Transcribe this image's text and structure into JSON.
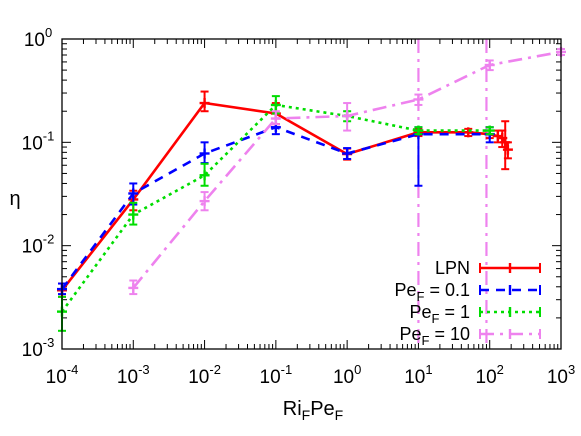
{
  "chart_data": {
    "type": "line",
    "xscale": "log",
    "yscale": "log",
    "xlim": [
      0.0001,
      1000
    ],
    "ylim": [
      0.001,
      1
    ],
    "xlabel": {
      "main": "Ri",
      "sub1": "F",
      "mid": "Pe",
      "sub2": "F"
    },
    "ylabel": "η",
    "x_ticks": [
      {
        "base": "10",
        "exp": "-4",
        "value": 0.0001
      },
      {
        "base": "10",
        "exp": "-3",
        "value": 0.001
      },
      {
        "base": "10",
        "exp": "-2",
        "value": 0.01
      },
      {
        "base": "10",
        "exp": "-1",
        "value": 0.1
      },
      {
        "base": "10",
        "exp": "0",
        "value": 1
      },
      {
        "base": "10",
        "exp": "1",
        "value": 10
      },
      {
        "base": "10",
        "exp": "2",
        "value": 100
      },
      {
        "base": "10",
        "exp": "3",
        "value": 1000
      }
    ],
    "y_ticks": [
      {
        "base": "10",
        "exp": "-3",
        "value": 0.001
      },
      {
        "base": "10",
        "exp": "-2",
        "value": 0.01
      },
      {
        "base": "10",
        "exp": "-1",
        "value": 0.1
      },
      {
        "base": "10",
        "exp": "0",
        "value": 1
      }
    ],
    "vlines": [
      {
        "x": 10,
        "color": "#ee82ee"
      },
      {
        "x": 90,
        "color": "#ee82ee"
      }
    ],
    "legend_position": "bottom-right",
    "series": [
      {
        "name": "LPN",
        "legend": {
          "main": "LPN",
          "sub": "",
          "rest": ""
        },
        "color": "#ff0000",
        "dash": "solid",
        "points": [
          {
            "x": 0.0001,
            "y": 0.0037,
            "lo": 0.0032,
            "hi": 0.0043
          },
          {
            "x": 0.001,
            "y": 0.028,
            "lo": 0.022,
            "hi": 0.034
          },
          {
            "x": 0.01,
            "y": 0.24,
            "lo": 0.2,
            "hi": 0.31
          },
          {
            "x": 0.1,
            "y": 0.19,
            "lo": 0.15,
            "hi": 0.24
          },
          {
            "x": 1,
            "y": 0.077,
            "lo": 0.068,
            "hi": 0.087
          },
          {
            "x": 10,
            "y": 0.125,
            "lo": 0.115,
            "hi": 0.135
          },
          {
            "x": 50,
            "y": 0.125,
            "lo": 0.115,
            "hi": 0.135
          },
          {
            "x": 100,
            "y": 0.12,
            "lo": 0.11,
            "hi": 0.13
          },
          {
            "x": 130,
            "y": 0.115,
            "lo": 0.1,
            "hi": 0.13
          },
          {
            "x": 150,
            "y": 0.11,
            "lo": 0.09,
            "hi": 0.13
          },
          {
            "x": 165,
            "y": 0.1,
            "lo": 0.055,
            "hi": 0.16
          },
          {
            "x": 180,
            "y": 0.085,
            "lo": 0.07,
            "hi": 0.1
          }
        ]
      },
      {
        "name": "PeF = 0.1",
        "legend": {
          "main": "Pe",
          "sub": "F",
          "rest": " = 0.1"
        },
        "color": "#0000ff",
        "dash": "9,7",
        "points": [
          {
            "x": 0.0001,
            "y": 0.0038,
            "lo": 0.0034,
            "hi": 0.0043
          },
          {
            "x": 0.001,
            "y": 0.032,
            "lo": 0.025,
            "hi": 0.04
          },
          {
            "x": 0.01,
            "y": 0.078,
            "lo": 0.063,
            "hi": 0.1
          },
          {
            "x": 0.1,
            "y": 0.14,
            "lo": 0.12,
            "hi": 0.17
          },
          {
            "x": 1,
            "y": 0.078,
            "lo": 0.069,
            "hi": 0.088
          },
          {
            "x": 10,
            "y": 0.12,
            "lo": 0.038,
            "hi": 0.14
          },
          {
            "x": 100,
            "y": 0.12,
            "lo": 0.1,
            "hi": 0.14
          }
        ]
      },
      {
        "name": "PeF = 1",
        "legend": {
          "main": "Pe",
          "sub": "F",
          "rest": " = 1"
        },
        "color": "#00dd00",
        "dash": "3,4",
        "points": [
          {
            "x": 0.0001,
            "y": 0.0023,
            "lo": 0.0015,
            "hi": 0.0032
          },
          {
            "x": 0.001,
            "y": 0.02,
            "lo": 0.016,
            "hi": 0.026
          },
          {
            "x": 0.01,
            "y": 0.048,
            "lo": 0.038,
            "hi": 0.062
          },
          {
            "x": 0.1,
            "y": 0.23,
            "lo": 0.19,
            "hi": 0.28
          },
          {
            "x": 1,
            "y": 0.18,
            "lo": 0.16,
            "hi": 0.2
          },
          {
            "x": 10,
            "y": 0.13,
            "lo": 0.12,
            "hi": 0.14
          },
          {
            "x": 100,
            "y": 0.13,
            "lo": 0.12,
            "hi": 0.14
          }
        ]
      },
      {
        "name": "PeF = 10",
        "legend": {
          "main": "Pe",
          "sub": "F",
          "rest": " = 10"
        },
        "color": "#ee82ee",
        "dash": "14,6,3,6",
        "points": [
          {
            "x": 0.001,
            "y": 0.0039,
            "lo": 0.0034,
            "hi": 0.0046
          },
          {
            "x": 0.01,
            "y": 0.027,
            "lo": 0.022,
            "hi": 0.033
          },
          {
            "x": 0.1,
            "y": 0.17,
            "lo": 0.15,
            "hi": 0.2
          },
          {
            "x": 1,
            "y": 0.18,
            "lo": 0.13,
            "hi": 0.24
          },
          {
            "x": 10,
            "y": 0.26,
            "lo": 0.23,
            "hi": 0.29
          },
          {
            "x": 100,
            "y": 0.56,
            "lo": 0.5,
            "hi": 0.62
          },
          {
            "x": 1000,
            "y": 0.75,
            "lo": 0.7,
            "hi": 0.8
          }
        ]
      }
    ]
  }
}
